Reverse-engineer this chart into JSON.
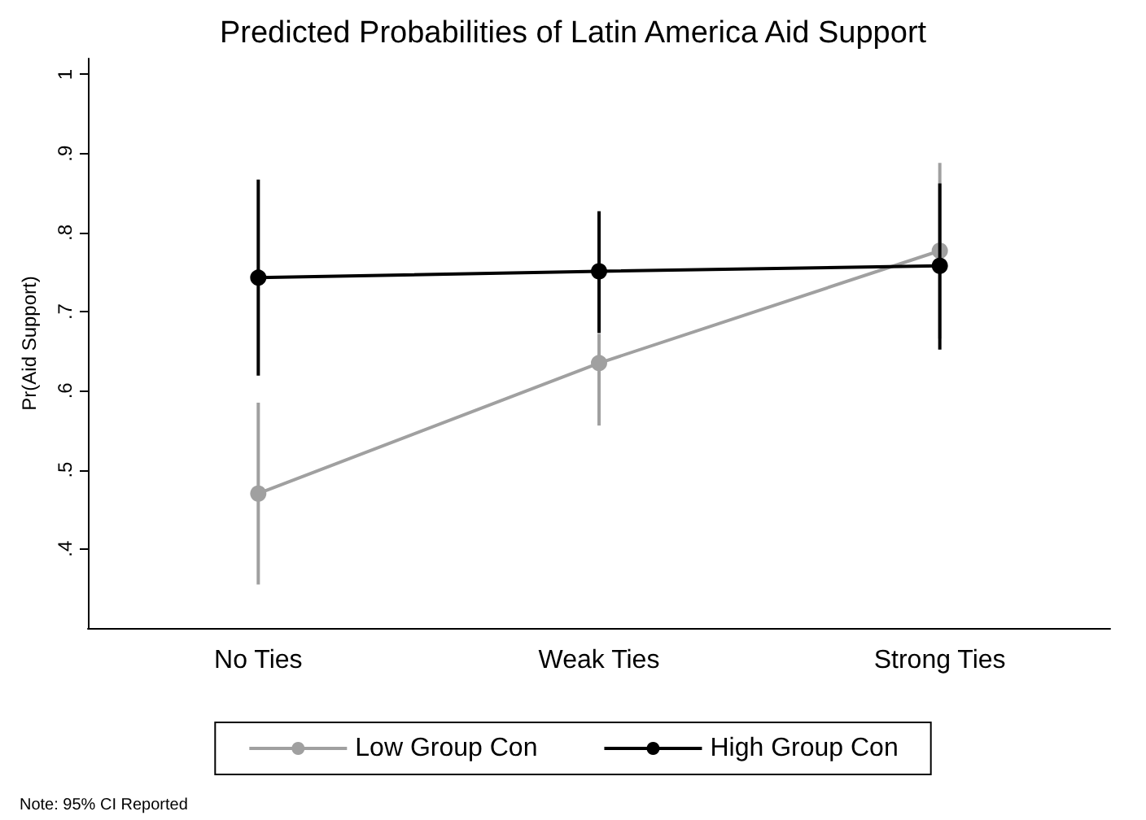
{
  "chart_data": {
    "type": "line",
    "title": "Predicted Probabilities of Latin America Aid Support",
    "ylabel": "Pr(Aid Support)",
    "annotations": [
      "Note: 95% CI Reported"
    ],
    "categories": [
      "No Ties",
      "Weak Ties",
      "Strong Ties"
    ],
    "series": [
      {
        "name": "Low Group Con",
        "color": "#a0a0a0",
        "values": [
          0.47,
          0.635,
          0.777
        ],
        "errors": [
          [
            0.355,
            0.585
          ],
          [
            0.556,
            0.672
          ],
          [
            0.666,
            0.888
          ]
        ]
      },
      {
        "name": "High Group Con",
        "color": "#000000",
        "values": [
          0.743,
          0.751,
          0.758
        ],
        "errors": [
          [
            0.619,
            0.867
          ],
          [
            0.673,
            0.827
          ],
          [
            0.652,
            0.862
          ]
        ]
      }
    ],
    "ylim": [
      0.3,
      1.02
    ],
    "yticks": [
      {
        "value": 0.4,
        "label": ".4"
      },
      {
        "value": 0.5,
        "label": ".5"
      },
      {
        "value": 0.6,
        "label": ".6"
      },
      {
        "value": 0.7,
        "label": ".7"
      },
      {
        "value": 0.8,
        "label": ".8"
      },
      {
        "value": 0.9,
        "label": ".9"
      },
      {
        "value": 1,
        "label": "1"
      }
    ],
    "grid": false,
    "legend": "bottom",
    "marker": "circle",
    "line_style": "solid"
  }
}
